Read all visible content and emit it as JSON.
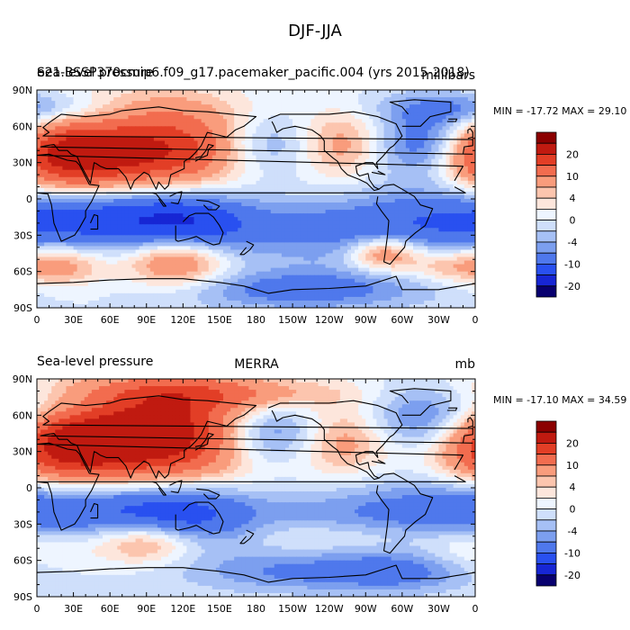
{
  "figure_title": "DJF-JJA",
  "colors": {
    "frame": "#000000",
    "coast": "#000000",
    "background": "#ffffff"
  },
  "chart_data": [
    {
      "type": "heatmap",
      "panel": "top",
      "title_left": "Sea-level pressure",
      "title_left_overlap": "e21.BSSP370cmip6.f09_g17.pacemaker_pacific.004 (yrs 2015-2018)",
      "title_center": "",
      "units": "millibars",
      "min_max_text": "MIN = -17.72 MAX =  29.10",
      "min": -17.72,
      "max": 29.1,
      "x_ticks": [
        "0",
        "30E",
        "60E",
        "90E",
        "120E",
        "150E",
        "180",
        "150W",
        "120W",
        "90W",
        "60W",
        "30W",
        "0"
      ],
      "y_ticks": [
        "90N",
        "60N",
        "30N",
        "0",
        "30S",
        "60S",
        "90S"
      ],
      "xlim": [
        0,
        360
      ],
      "ylim": [
        -90,
        90
      ],
      "anomalies": [
        {
          "lon": 95,
          "lat": 45,
          "value": 24,
          "size": [
            70,
            25
          ]
        },
        {
          "lon": 20,
          "lat": 35,
          "value": 14,
          "size": [
            35,
            20
          ]
        },
        {
          "lon": 245,
          "lat": 45,
          "value": 12,
          "size": [
            30,
            20
          ]
        },
        {
          "lon": 195,
          "lat": 45,
          "value": -14,
          "size": [
            45,
            20
          ]
        },
        {
          "lon": 320,
          "lat": 45,
          "value": -12,
          "size": [
            30,
            20
          ]
        },
        {
          "lon": 60,
          "lat": 58,
          "value": -6,
          "size": [
            45,
            12
          ]
        },
        {
          "lon": 0,
          "lat": -15,
          "value": -6,
          "size": [
            50,
            20
          ]
        },
        {
          "lon": 80,
          "lat": -15,
          "value": -10,
          "size": [
            60,
            18
          ]
        },
        {
          "lon": 125,
          "lat": -25,
          "value": -10,
          "size": [
            40,
            20
          ]
        },
        {
          "lon": 265,
          "lat": -25,
          "value": -8,
          "size": [
            60,
            20
          ]
        },
        {
          "lon": 115,
          "lat": -50,
          "value": 14,
          "size": [
            30,
            15
          ]
        },
        {
          "lon": 285,
          "lat": -45,
          "value": 12,
          "size": [
            20,
            10
          ]
        },
        {
          "lon": 20,
          "lat": -55,
          "value": 8,
          "size": [
            25,
            12
          ]
        },
        {
          "lon": 335,
          "lat": -55,
          "value": 6,
          "size": [
            25,
            10
          ]
        },
        {
          "lon": 220,
          "lat": -75,
          "value": -8,
          "size": [
            70,
            12
          ]
        },
        {
          "lon": 0,
          "lat": 75,
          "value": -8,
          "size": [
            50,
            10
          ]
        }
      ]
    },
    {
      "type": "heatmap",
      "panel": "bottom",
      "title_left": "Sea-level pressure",
      "title_left_overlap": "",
      "title_center": "MERRA",
      "units": "mb",
      "min_max_text": "MIN = -17.10 MAX =  34.59",
      "min": -17.1,
      "max": 34.59,
      "x_ticks": [
        "0",
        "30E",
        "60E",
        "90E",
        "120E",
        "150E",
        "180",
        "150W",
        "120W",
        "90W",
        "60W",
        "30W",
        "0"
      ],
      "y_ticks": [
        "90N",
        "60N",
        "30N",
        "0",
        "30S",
        "60S",
        "90S"
      ],
      "xlim": [
        0,
        360
      ],
      "ylim": [
        -90,
        90
      ],
      "anomalies": [
        {
          "lon": 95,
          "lat": 45,
          "value": 28,
          "size": [
            70,
            28
          ]
        },
        {
          "lon": 20,
          "lat": 30,
          "value": 12,
          "size": [
            35,
            20
          ]
        },
        {
          "lon": 250,
          "lat": 40,
          "value": 10,
          "size": [
            30,
            20
          ]
        },
        {
          "lon": 140,
          "lat": 78,
          "value": 8,
          "size": [
            80,
            10
          ]
        },
        {
          "lon": 190,
          "lat": 45,
          "value": -16,
          "size": [
            40,
            20
          ]
        },
        {
          "lon": 320,
          "lat": 55,
          "value": -10,
          "size": [
            35,
            20
          ]
        },
        {
          "lon": 40,
          "lat": 70,
          "value": -6,
          "size": [
            40,
            12
          ]
        },
        {
          "lon": 0,
          "lat": -15,
          "value": -6,
          "size": [
            50,
            20
          ]
        },
        {
          "lon": 80,
          "lat": -15,
          "value": -8,
          "size": [
            60,
            18
          ]
        },
        {
          "lon": 125,
          "lat": -25,
          "value": -8,
          "size": [
            40,
            20
          ]
        },
        {
          "lon": 265,
          "lat": -25,
          "value": -6,
          "size": [
            60,
            20
          ]
        },
        {
          "lon": 90,
          "lat": -45,
          "value": 10,
          "size": [
            30,
            12
          ]
        },
        {
          "lon": 250,
          "lat": -40,
          "value": 4,
          "size": [
            60,
            10
          ]
        },
        {
          "lon": 0,
          "lat": -50,
          "value": 4,
          "size": [
            30,
            12
          ]
        },
        {
          "lon": 210,
          "lat": -70,
          "value": -6,
          "size": [
            60,
            12
          ]
        },
        {
          "lon": 300,
          "lat": -70,
          "value": -6,
          "size": [
            40,
            12
          ]
        }
      ]
    }
  ],
  "colorbar": {
    "labels": [
      "20",
      "10",
      "4",
      "0",
      "-4",
      "-10",
      "-20"
    ],
    "levels": [
      -30,
      -20,
      -15,
      -10,
      -6,
      -4,
      -2,
      0,
      2,
      4,
      6,
      10,
      15,
      20,
      30
    ],
    "colors": [
      "#08006f",
      "#1726d4",
      "#2950f0",
      "#4f78ec",
      "#7c9fef",
      "#a6c0f5",
      "#cfdffb",
      "#eef5ff",
      "#fde6dc",
      "#fcc5ae",
      "#f99c7c",
      "#f26c4f",
      "#e23e26",
      "#c01a10",
      "#8b0000"
    ]
  }
}
